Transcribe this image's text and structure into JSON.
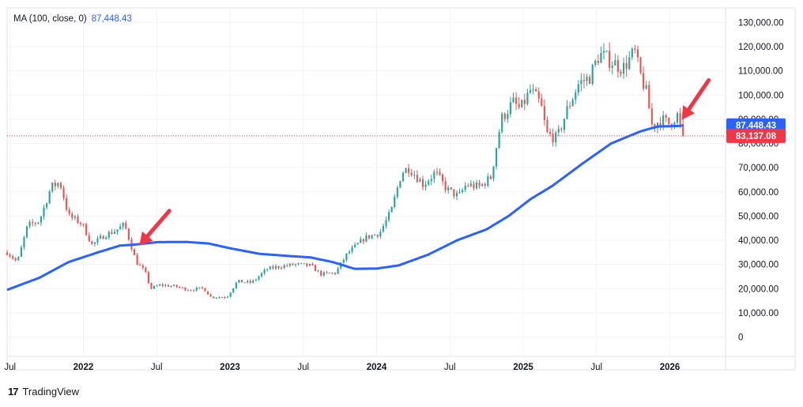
{
  "legend": {
    "label": "MA (100, close, 0)",
    "value": "87,448.43"
  },
  "footer": {
    "brand": "TradingView",
    "logo_glyph": "17"
  },
  "colors": {
    "up": "#26a69a",
    "down": "#ef5350",
    "ma": "#2962ff",
    "grid": "#f0f3fa",
    "arrow": "#f23645",
    "ma_badge": "#2962ff",
    "price_badge": "#f23645"
  },
  "chart_data": {
    "type": "candlestick",
    "title": "",
    "y_tick_labels": [
      "130,000.00",
      "120,000.00",
      "110,000.00",
      "100,000.00",
      "90,000.00",
      "80,000.00",
      "70,000.00",
      "60,000.00",
      "50,000.00",
      "40,000.00",
      "30,000.00",
      "20,000.00",
      "10,000.00",
      "0"
    ],
    "y_ticks": [
      130000,
      120000,
      110000,
      100000,
      90000,
      80000,
      70000,
      60000,
      50000,
      40000,
      30000,
      20000,
      10000,
      0
    ],
    "ylim": [
      -8000,
      136000
    ],
    "x_ticks": [
      {
        "label": "Jul",
        "t": 2021.5,
        "bold": false
      },
      {
        "label": "2022",
        "t": 2022.0,
        "bold": true
      },
      {
        "label": "Jul",
        "t": 2022.5,
        "bold": false
      },
      {
        "label": "2023",
        "t": 2023.0,
        "bold": true
      },
      {
        "label": "Jul",
        "t": 2023.5,
        "bold": false
      },
      {
        "label": "2024",
        "t": 2024.0,
        "bold": true
      },
      {
        "label": "Jul",
        "t": 2024.5,
        "bold": false
      },
      {
        "label": "2025",
        "t": 2025.0,
        "bold": true
      },
      {
        "label": "Jul",
        "t": 2025.5,
        "bold": false
      },
      {
        "label": "2026",
        "t": 2026.0,
        "bold": true
      }
    ],
    "xlim": [
      2021.48,
      2026.38
    ],
    "price_anchors": [
      [
        2021.48,
        35000
      ],
      [
        2021.55,
        31000
      ],
      [
        2021.62,
        46000
      ],
      [
        2021.7,
        48000
      ],
      [
        2021.78,
        62000
      ],
      [
        2021.84,
        64000
      ],
      [
        2021.9,
        50000
      ],
      [
        2021.99,
        47000
      ],
      [
        2022.06,
        38000
      ],
      [
        2022.14,
        42000
      ],
      [
        2022.22,
        44000
      ],
      [
        2022.28,
        46500
      ],
      [
        2022.32,
        39000
      ],
      [
        2022.36,
        31000
      ],
      [
        2022.42,
        27000
      ],
      [
        2022.46,
        20000
      ],
      [
        2022.52,
        21500
      ],
      [
        2022.62,
        21000
      ],
      [
        2022.72,
        19500
      ],
      [
        2022.82,
        20200
      ],
      [
        2022.87,
        16500
      ],
      [
        2022.98,
        16600
      ],
      [
        2023.05,
        23000
      ],
      [
        2023.15,
        22500
      ],
      [
        2023.25,
        28000
      ],
      [
        2023.32,
        29000
      ],
      [
        2023.45,
        30000
      ],
      [
        2023.55,
        29500
      ],
      [
        2023.62,
        26000
      ],
      [
        2023.72,
        26500
      ],
      [
        2023.8,
        34500
      ],
      [
        2023.92,
        41000
      ],
      [
        2024.02,
        43000
      ],
      [
        2024.1,
        52000
      ],
      [
        2024.17,
        68000
      ],
      [
        2024.22,
        70000
      ],
      [
        2024.32,
        63000
      ],
      [
        2024.4,
        68000
      ],
      [
        2024.48,
        61000
      ],
      [
        2024.56,
        58000
      ],
      [
        2024.61,
        63000
      ],
      [
        2024.7,
        62000
      ],
      [
        2024.78,
        66000
      ],
      [
        2024.85,
        90000
      ],
      [
        2024.93,
        97000
      ],
      [
        2024.98,
        94000
      ],
      [
        2025.05,
        102000
      ],
      [
        2025.12,
        96000
      ],
      [
        2025.16,
        84000
      ],
      [
        2025.23,
        82000
      ],
      [
        2025.3,
        94000
      ],
      [
        2025.38,
        105000
      ],
      [
        2025.45,
        107000
      ],
      [
        2025.52,
        117000
      ],
      [
        2025.6,
        114000
      ],
      [
        2025.68,
        111000
      ],
      [
        2025.76,
        118000
      ],
      [
        2025.79,
        110000
      ],
      [
        2025.84,
        101000
      ],
      [
        2025.88,
        87000
      ],
      [
        2025.94,
        90000
      ],
      [
        2026.0,
        88000
      ],
      [
        2026.05,
        92000
      ],
      [
        2026.07,
        87000
      ],
      [
        2026.09,
        83137
      ]
    ],
    "candle_count": 240,
    "ma_anchors": [
      [
        2021.48,
        19500
      ],
      [
        2021.7,
        24500
      ],
      [
        2021.9,
        31000
      ],
      [
        2022.1,
        35000
      ],
      [
        2022.25,
        37800
      ],
      [
        2022.35,
        38200
      ],
      [
        2022.5,
        39200
      ],
      [
        2022.7,
        39300
      ],
      [
        2022.85,
        38700
      ],
      [
        2023.0,
        36700
      ],
      [
        2023.2,
        34400
      ],
      [
        2023.4,
        33500
      ],
      [
        2023.55,
        32900
      ],
      [
        2023.7,
        31000
      ],
      [
        2023.85,
        28200
      ],
      [
        2024.0,
        28300
      ],
      [
        2024.15,
        29600
      ],
      [
        2024.35,
        34000
      ],
      [
        2024.55,
        40000
      ],
      [
        2024.75,
        44500
      ],
      [
        2024.9,
        50000
      ],
      [
        2025.05,
        57000
      ],
      [
        2025.2,
        62500
      ],
      [
        2025.4,
        71500
      ],
      [
        2025.6,
        80000
      ],
      [
        2025.8,
        85000
      ],
      [
        2025.92,
        87000
      ],
      [
        2026.05,
        87200
      ],
      [
        2026.09,
        87448
      ]
    ],
    "series": [
      {
        "name": "MA (100, close, 0)",
        "last_value": 87448.43,
        "last_label": "87,448.43"
      },
      {
        "name": "Price",
        "last_value": 83137.08,
        "last_label": "83,137.08"
      }
    ],
    "annotations": [
      {
        "type": "arrow",
        "points_to_t": 2022.36,
        "points_to_price": 36500
      },
      {
        "type": "arrow",
        "points_to_t": 2026.06,
        "points_to_price": 88500
      }
    ],
    "grid": true,
    "legend": "top-left"
  }
}
